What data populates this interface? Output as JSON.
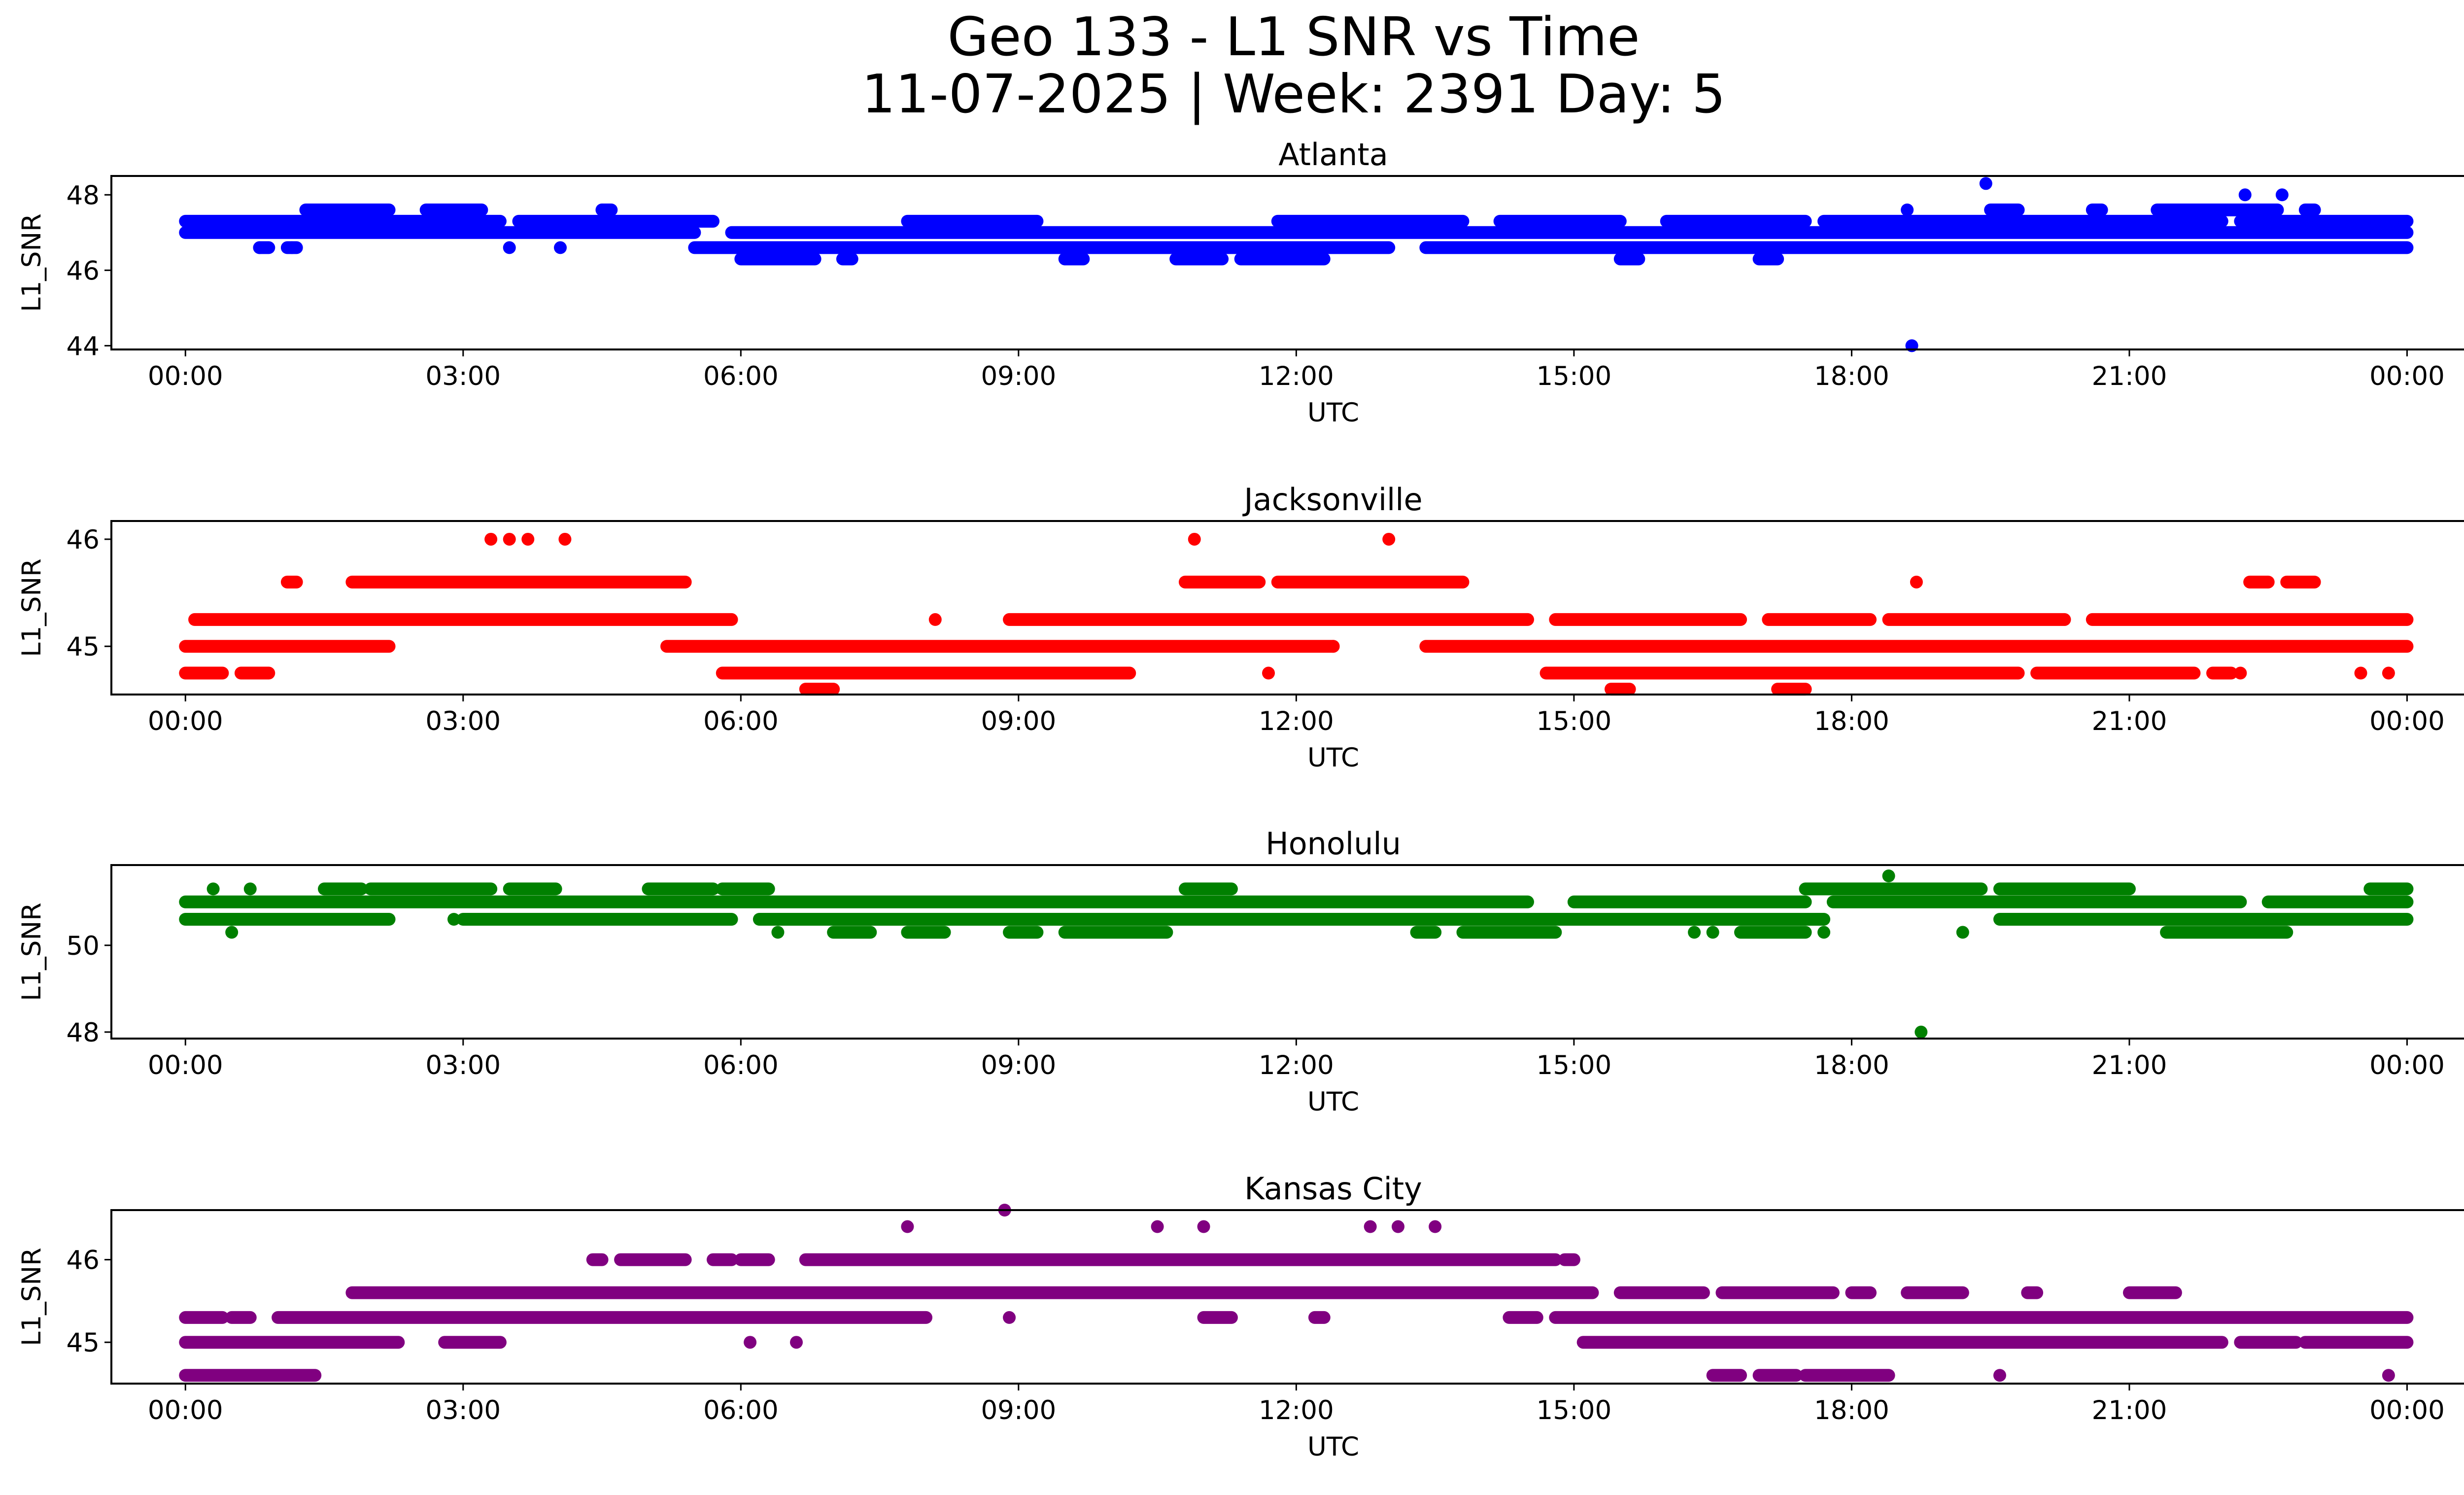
{
  "figure": {
    "title_line1": "Geo 133 - L1 SNR vs Time",
    "title_line2": "11-07-2025 | Week: 2391 Day: 5"
  },
  "chart_data": [
    {
      "type": "scatter",
      "title": "Atlanta",
      "xlabel": "UTC",
      "ylabel": "L1_SNR",
      "color": "#0000ff",
      "x_unit": "hours UTC",
      "xlim": [
        -0.8,
        25.6
      ],
      "ylim": [
        43.9,
        48.5
      ],
      "xticks": [
        0,
        3,
        6,
        9,
        12,
        15,
        18,
        21,
        24
      ],
      "xtick_labels": [
        "00:00",
        "03:00",
        "06:00",
        "09:00",
        "12:00",
        "15:00",
        "18:00",
        "21:00",
        "00:00"
      ],
      "yticks": [
        44,
        46,
        48
      ],
      "ytick_labels": [
        "44",
        "46",
        "48"
      ],
      "bands": [
        {
          "y": 47.6,
          "segments": [
            [
              1.3,
              2.2
            ],
            [
              2.6,
              3.2
            ],
            [
              4.5,
              4.6
            ],
            [
              19.5,
              19.8
            ],
            [
              20.6,
              20.7
            ],
            [
              21.3,
              22.6
            ],
            [
              22.9,
              23.0
            ]
          ]
        },
        {
          "y": 47.3,
          "segments": [
            [
              0.0,
              3.4
            ],
            [
              3.6,
              5.7
            ],
            [
              7.8,
              9.2
            ],
            [
              11.8,
              13.8
            ],
            [
              14.2,
              15.5
            ],
            [
              16.0,
              17.5
            ],
            [
              17.7,
              22.0
            ],
            [
              22.2,
              24.0
            ]
          ]
        },
        {
          "y": 47.0,
          "segments": [
            [
              0.0,
              5.5
            ],
            [
              5.9,
              24.0
            ]
          ]
        },
        {
          "y": 46.6,
          "segments": [
            [
              0.8,
              0.9
            ],
            [
              1.1,
              1.2
            ],
            [
              5.5,
              13.0
            ],
            [
              13.4,
              24.0
            ]
          ]
        },
        {
          "y": 46.3,
          "segments": [
            [
              6.0,
              6.8
            ],
            [
              7.1,
              7.2
            ],
            [
              9.5,
              9.7
            ],
            [
              10.7,
              11.2
            ],
            [
              11.4,
              12.3
            ],
            [
              15.5,
              15.7
            ],
            [
              17.0,
              17.2
            ]
          ]
        }
      ],
      "points": [
        [
          0.8,
          46.6
        ],
        [
          1.15,
          46.6
        ],
        [
          3.5,
          46.6
        ],
        [
          4.05,
          46.6
        ],
        [
          4.5,
          47.6
        ],
        [
          18.65,
          44.0
        ],
        [
          18.6,
          47.6
        ],
        [
          19.45,
          48.3
        ],
        [
          22.25,
          48.0
        ],
        [
          22.65,
          48.0
        ]
      ]
    },
    {
      "type": "scatter",
      "title": "Jacksonville",
      "xlabel": "UTC",
      "ylabel": "L1_SNR",
      "color": "#ff0000",
      "x_unit": "hours UTC",
      "xlim": [
        -0.8,
        25.6
      ],
      "ylim": [
        44.55,
        46.17
      ],
      "xticks": [
        0,
        3,
        6,
        9,
        12,
        15,
        18,
        21,
        24
      ],
      "xtick_labels": [
        "00:00",
        "03:00",
        "06:00",
        "09:00",
        "12:00",
        "15:00",
        "18:00",
        "21:00",
        "00:00"
      ],
      "yticks": [
        45,
        46
      ],
      "ytick_labels": [
        "45",
        "46"
      ],
      "bands": [
        {
          "y": 45.6,
          "segments": [
            [
              1.1,
              1.2
            ],
            [
              1.8,
              5.4
            ],
            [
              10.8,
              11.6
            ],
            [
              11.8,
              13.8
            ],
            [
              22.3,
              22.5
            ],
            [
              22.7,
              23.0
            ]
          ]
        },
        {
          "y": 45.25,
          "segments": [
            [
              0.1,
              5.9
            ],
            [
              8.9,
              14.5
            ],
            [
              14.8,
              16.8
            ],
            [
              17.1,
              18.2
            ],
            [
              18.4,
              20.3
            ],
            [
              20.6,
              24.0
            ]
          ]
        },
        {
          "y": 45.0,
          "segments": [
            [
              0.0,
              2.2
            ],
            [
              5.2,
              12.4
            ],
            [
              13.4,
              24.0
            ]
          ]
        },
        {
          "y": 44.75,
          "segments": [
            [
              0.0,
              0.4
            ],
            [
              0.6,
              0.9
            ],
            [
              5.8,
              10.2
            ],
            [
              14.7,
              19.8
            ],
            [
              20.0,
              21.7
            ],
            [
              21.9,
              22.1
            ]
          ]
        },
        {
          "y": 44.6,
          "segments": [
            [
              6.7,
              7.0
            ],
            [
              15.4,
              15.6
            ],
            [
              17.2,
              17.5
            ]
          ]
        }
      ],
      "points": [
        [
          3.3,
          46.0
        ],
        [
          3.5,
          46.0
        ],
        [
          3.7,
          46.0
        ],
        [
          4.1,
          46.0
        ],
        [
          10.9,
          46.0
        ],
        [
          13.0,
          46.0
        ],
        [
          11.7,
          44.75
        ],
        [
          12.4,
          45.0
        ],
        [
          18.7,
          45.6
        ],
        [
          8.1,
          45.25
        ],
        [
          22.2,
          44.75
        ],
        [
          23.5,
          44.75
        ],
        [
          23.8,
          44.75
        ]
      ]
    },
    {
      "type": "scatter",
      "title": "Honolulu",
      "xlabel": "UTC",
      "ylabel": "L1_SNR",
      "color": "#008000",
      "x_unit": "hours UTC",
      "xlim": [
        -0.8,
        25.6
      ],
      "ylim": [
        47.85,
        51.85
      ],
      "xticks": [
        0,
        3,
        6,
        9,
        12,
        15,
        18,
        21,
        24
      ],
      "xtick_labels": [
        "00:00",
        "03:00",
        "06:00",
        "09:00",
        "12:00",
        "15:00",
        "18:00",
        "21:00",
        "00:00"
      ],
      "yticks": [
        48,
        50
      ],
      "ytick_labels": [
        "48",
        "50"
      ],
      "bands": [
        {
          "y": 51.3,
          "segments": [
            [
              1.5,
              1.9
            ],
            [
              2.0,
              3.3
            ],
            [
              3.5,
              4.0
            ],
            [
              5.0,
              5.7
            ],
            [
              5.8,
              6.3
            ],
            [
              10.8,
              11.3
            ],
            [
              17.5,
              19.4
            ],
            [
              19.6,
              21.0
            ],
            [
              23.6,
              24.0
            ]
          ]
        },
        {
          "y": 51.0,
          "segments": [
            [
              0.0,
              14.5
            ],
            [
              15.0,
              17.5
            ],
            [
              17.8,
              22.2
            ],
            [
              22.5,
              24.0
            ]
          ]
        },
        {
          "y": 50.6,
          "segments": [
            [
              0.0,
              2.2
            ],
            [
              3.0,
              5.9
            ],
            [
              6.2,
              17.7
            ],
            [
              19.6,
              24.0
            ]
          ]
        },
        {
          "y": 50.3,
          "segments": [
            [
              7.0,
              7.4
            ],
            [
              7.8,
              8.2
            ],
            [
              8.9,
              9.2
            ],
            [
              9.5,
              10.6
            ],
            [
              13.3,
              13.5
            ],
            [
              13.8,
              14.8
            ],
            [
              16.8,
              17.5
            ],
            [
              21.4,
              22.7
            ]
          ]
        }
      ],
      "points": [
        [
          0.3,
          51.3
        ],
        [
          0.7,
          51.3
        ],
        [
          0.5,
          50.3
        ],
        [
          2.9,
          50.6
        ],
        [
          6.4,
          50.3
        ],
        [
          18.4,
          51.6
        ],
        [
          18.75,
          48.0
        ],
        [
          19.2,
          50.3
        ],
        [
          16.3,
          50.3
        ],
        [
          16.5,
          50.3
        ],
        [
          17.7,
          50.3
        ]
      ]
    },
    {
      "type": "scatter",
      "title": "Kansas City",
      "xlabel": "UTC",
      "ylabel": "L1_SNR",
      "color": "#800080",
      "x_unit": "hours UTC",
      "xlim": [
        -0.8,
        25.6
      ],
      "ylim": [
        44.5,
        46.6
      ],
      "xticks": [
        0,
        3,
        6,
        9,
        12,
        15,
        18,
        21,
        24
      ],
      "xtick_labels": [
        "00:00",
        "03:00",
        "06:00",
        "09:00",
        "12:00",
        "15:00",
        "18:00",
        "21:00",
        "00:00"
      ],
      "yticks": [
        45,
        46
      ],
      "ytick_labels": [
        "45",
        "46"
      ],
      "bands": [
        {
          "y": 46.0,
          "segments": [
            [
              4.4,
              4.5
            ],
            [
              4.7,
              5.4
            ],
            [
              5.7,
              5.9
            ],
            [
              6.0,
              6.3
            ],
            [
              6.7,
              14.8
            ],
            [
              14.9,
              15.0
            ]
          ]
        },
        {
          "y": 45.6,
          "segments": [
            [
              1.8,
              15.2
            ],
            [
              15.5,
              16.4
            ],
            [
              16.6,
              17.8
            ],
            [
              18.0,
              18.2
            ],
            [
              18.6,
              19.2
            ],
            [
              19.9,
              20.0
            ],
            [
              21.0,
              21.5
            ]
          ]
        },
        {
          "y": 45.3,
          "segments": [
            [
              0.0,
              0.4
            ],
            [
              0.5,
              0.7
            ],
            [
              1.0,
              8.0
            ],
            [
              11.0,
              11.3
            ],
            [
              12.2,
              12.3
            ],
            [
              14.3,
              14.6
            ],
            [
              14.8,
              24.0
            ]
          ]
        },
        {
          "y": 45.0,
          "segments": [
            [
              0.0,
              2.3
            ],
            [
              2.8,
              3.4
            ],
            [
              15.1,
              22.0
            ],
            [
              22.2,
              22.8
            ],
            [
              22.9,
              24.0
            ]
          ]
        },
        {
          "y": 44.6,
          "segments": [
            [
              0.0,
              1.4
            ],
            [
              16.5,
              16.8
            ],
            [
              17.0,
              17.4
            ],
            [
              17.5,
              18.4
            ]
          ]
        }
      ],
      "points": [
        [
          8.85,
          46.6
        ],
        [
          8.9,
          45.3
        ],
        [
          6.1,
          45.0
        ],
        [
          6.6,
          45.0
        ],
        [
          7.8,
          46.4
        ],
        [
          10.5,
          46.4
        ],
        [
          11.0,
          46.4
        ],
        [
          12.8,
          46.4
        ],
        [
          13.1,
          46.4
        ],
        [
          13.5,
          46.4
        ],
        [
          19.6,
          44.6
        ],
        [
          23.8,
          44.6
        ]
      ]
    }
  ]
}
